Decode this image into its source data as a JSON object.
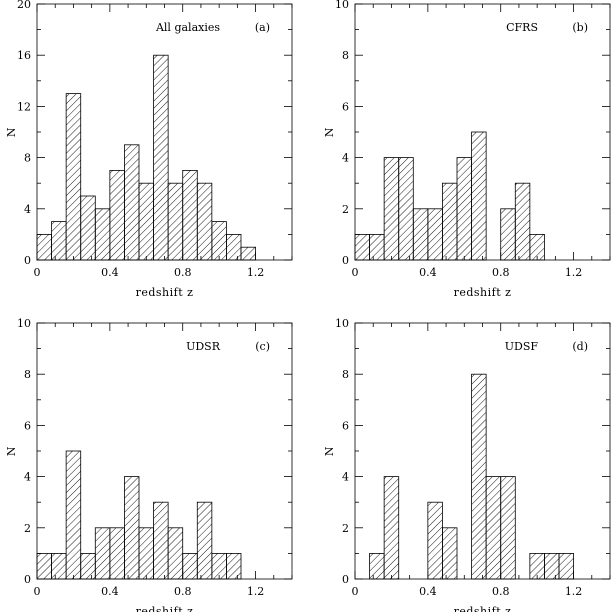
{
  "chart_data": [
    {
      "type": "bar",
      "id": "a",
      "label": "All galaxies",
      "tag": "(a)",
      "xlabel": "redshift z",
      "ylabel": "N",
      "xlim": [
        0,
        1.4
      ],
      "ylim": [
        0,
        20
      ],
      "xticks": [
        "0",
        "0.4",
        "0.8",
        "1.2"
      ],
      "yticks": [
        "0",
        "4",
        "8",
        "12",
        "16",
        "20"
      ],
      "bin_width": 0.08,
      "bins": [
        0.0,
        0.08,
        0.16,
        0.24,
        0.32,
        0.4,
        0.48,
        0.56,
        0.64,
        0.72,
        0.8,
        0.88,
        0.96,
        1.04,
        1.12
      ],
      "values": [
        2,
        3,
        13,
        5,
        4,
        7,
        9,
        6,
        16,
        6,
        7,
        6,
        3,
        2,
        1
      ]
    },
    {
      "type": "bar",
      "id": "b",
      "label": "CFRS",
      "tag": "(b)",
      "xlabel": "redshift z",
      "ylabel": "N",
      "xlim": [
        0,
        1.4
      ],
      "ylim": [
        0,
        10
      ],
      "xticks": [
        "0",
        "0.4",
        "0.8",
        "1.2"
      ],
      "yticks": [
        "0",
        "2",
        "4",
        "6",
        "8",
        "10"
      ],
      "bin_width": 0.08,
      "bins": [
        0.0,
        0.08,
        0.16,
        0.24,
        0.32,
        0.4,
        0.48,
        0.56,
        0.64,
        0.72,
        0.8,
        0.88,
        0.96
      ],
      "values": [
        1,
        1,
        4,
        4,
        2,
        2,
        3,
        4,
        5,
        0,
        2,
        3,
        1
      ]
    },
    {
      "type": "bar",
      "id": "c",
      "label": "UDSR",
      "tag": "(c)",
      "xlabel": "redshift z",
      "ylabel": "N",
      "xlim": [
        0,
        1.4
      ],
      "ylim": [
        0,
        10
      ],
      "xticks": [
        "0",
        "0.4",
        "0.8",
        "1.2"
      ],
      "yticks": [
        "0",
        "2",
        "4",
        "6",
        "8",
        "10"
      ],
      "bin_width": 0.08,
      "bins": [
        0.0,
        0.08,
        0.16,
        0.24,
        0.32,
        0.4,
        0.48,
        0.56,
        0.64,
        0.72,
        0.8,
        0.88,
        0.96,
        1.04
      ],
      "values": [
        1,
        1,
        5,
        1,
        2,
        2,
        4,
        2,
        3,
        2,
        1,
        3,
        1,
        1
      ]
    },
    {
      "type": "bar",
      "id": "d",
      "label": "UDSF",
      "tag": "(d)",
      "xlabel": "redshift z",
      "ylabel": "N",
      "xlim": [
        0,
        1.4
      ],
      "ylim": [
        0,
        10
      ],
      "xticks": [
        "0",
        "0.4",
        "0.8",
        "1.2"
      ],
      "yticks": [
        "0",
        "2",
        "4",
        "6",
        "8",
        "10"
      ],
      "bin_width": 0.08,
      "bins": [
        0.08,
        0.16,
        0.24,
        0.32,
        0.4,
        0.48,
        0.56,
        0.64,
        0.72,
        0.8,
        0.88,
        0.96,
        1.04,
        1.12
      ],
      "values": [
        1,
        4,
        0,
        0,
        3,
        2,
        0,
        8,
        4,
        4,
        0,
        1,
        1,
        1
      ]
    }
  ]
}
